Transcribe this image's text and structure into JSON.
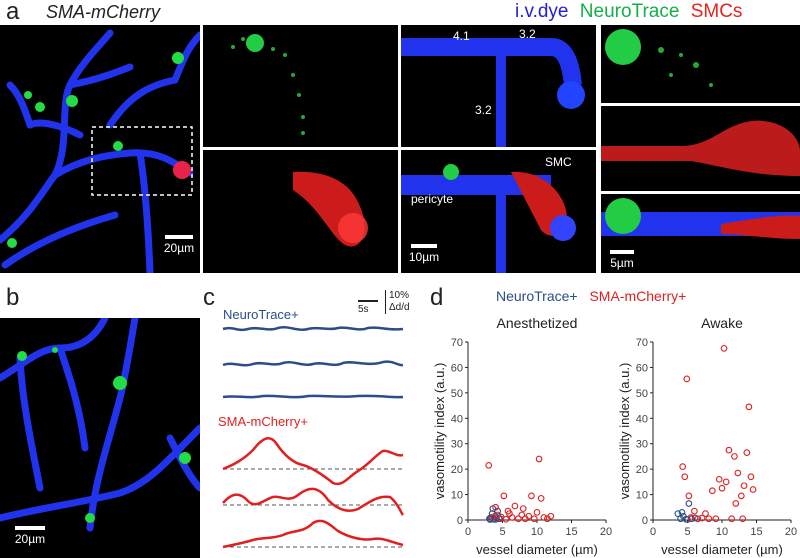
{
  "figure": {
    "panel_a": {
      "letter": "a",
      "mouse_line": "SMA-mCherry",
      "channels": [
        {
          "label": "i.v.dye",
          "color": "#1f1fd8"
        },
        {
          "label": "NeuroTrace",
          "color": "#12b04a"
        },
        {
          "label": "SMCs",
          "color": "#e8221b"
        }
      ],
      "scalebars": [
        "20µm",
        "10µm",
        "5µm"
      ],
      "vessel_labels": [
        "4.1",
        "3.2",
        "3.2"
      ],
      "cell_labels": [
        "SMC",
        "pericyte"
      ]
    },
    "panel_b": {
      "letter": "b",
      "scalebar": "20µm"
    },
    "panel_c": {
      "letter": "c",
      "group1": "NeuroTrace+",
      "group2": "SMA-mCherry+",
      "scale_time": "5s",
      "scale_amp": "10%",
      "scale_amp_unit": "Δd/d"
    },
    "panel_d": {
      "letter": "d",
      "legend": [
        {
          "label": "NeuroTrace+",
          "color": "#2a4f86"
        },
        {
          "label": "SMA-mCherry+",
          "color": "#e02020"
        }
      ]
    }
  },
  "chart_data": [
    {
      "type": "scatter",
      "title": "Anesthetized",
      "xlabel": "vessel diameter (µm)",
      "ylabel": "vasomotility index (a.u.)",
      "xlim": [
        0,
        20
      ],
      "ylim": [
        0,
        70
      ],
      "xticks": [
        0,
        5,
        10,
        15,
        20
      ],
      "yticks": [
        0,
        10,
        20,
        30,
        40,
        50,
        60,
        70
      ],
      "series": [
        {
          "name": "NeuroTrace+",
          "color": "#2a4f86",
          "points": [
            [
              3.1,
              0.5
            ],
            [
              3.3,
              1.0
            ],
            [
              3.5,
              2.5
            ],
            [
              3.7,
              0.3
            ],
            [
              3.9,
              1.5
            ],
            [
              4.1,
              0.8
            ],
            [
              4.3,
              3.5
            ],
            [
              4.5,
              0.5
            ],
            [
              3.6,
              4.5
            ],
            [
              4.0,
              0.2
            ],
            [
              4.8,
              1.2
            ],
            [
              3.2,
              0.2
            ]
          ]
        },
        {
          "name": "SMA-mCherry+",
          "color": "#e02020",
          "points": [
            [
              3.0,
              21.5
            ],
            [
              3.5,
              1.0
            ],
            [
              4.0,
              5.0
            ],
            [
              4.3,
              2.0
            ],
            [
              4.7,
              0.5
            ],
            [
              5.2,
              9.5
            ],
            [
              5.5,
              0.3
            ],
            [
              6.0,
              2.5
            ],
            [
              6.4,
              1.0
            ],
            [
              6.8,
              5.5
            ],
            [
              7.3,
              0.5
            ],
            [
              7.8,
              2.0
            ],
            [
              8.3,
              0.5
            ],
            [
              8.8,
              1.5
            ],
            [
              9.2,
              9.5
            ],
            [
              9.6,
              0.5
            ],
            [
              10.0,
              3.0
            ],
            [
              10.3,
              24.0
            ],
            [
              10.6,
              8.5
            ],
            [
              11.0,
              1.0
            ],
            [
              11.5,
              0.5
            ],
            [
              12.0,
              1.5
            ],
            [
              5.8,
              3.5
            ],
            [
              8.0,
              4.5
            ]
          ]
        }
      ]
    },
    {
      "type": "scatter",
      "title": "Awake",
      "xlabel": "vessel diameter (µm)",
      "ylabel": "vasomotility index (a.u.)",
      "xlim": [
        0,
        20
      ],
      "ylim": [
        0,
        70
      ],
      "xticks": [
        0,
        5,
        10,
        15,
        20
      ],
      "yticks": [
        0,
        10,
        20,
        30,
        40,
        50,
        60,
        70
      ],
      "series": [
        {
          "name": "NeuroTrace+",
          "color": "#2a4f86",
          "points": [
            [
              3.6,
              2.5
            ],
            [
              4.0,
              0.5
            ],
            [
              4.4,
              1.5
            ],
            [
              4.8,
              0.3
            ],
            [
              5.2,
              6.5
            ],
            [
              5.6,
              0.5
            ],
            [
              6.1,
              0.8
            ],
            [
              4.2,
              3.0
            ],
            [
              5.0,
              0.2
            ]
          ]
        },
        {
          "name": "SMA-mCherry+",
          "color": "#e02020",
          "points": [
            [
              4.3,
              21.0
            ],
            [
              4.6,
              17.0
            ],
            [
              4.9,
              55.5
            ],
            [
              5.2,
              9.5
            ],
            [
              5.5,
              1.0
            ],
            [
              6.0,
              3.5
            ],
            [
              6.5,
              0.5
            ],
            [
              7.1,
              0.8
            ],
            [
              7.6,
              2.5
            ],
            [
              8.1,
              0.5
            ],
            [
              8.6,
              11.5
            ],
            [
              9.1,
              0.5
            ],
            [
              9.6,
              16.0
            ],
            [
              10.0,
              12.5
            ],
            [
              10.3,
              67.5
            ],
            [
              10.6,
              15.0
            ],
            [
              11.0,
              27.5
            ],
            [
              11.4,
              0.5
            ],
            [
              11.8,
              25.0
            ],
            [
              12.3,
              18.5
            ],
            [
              12.8,
              9.5
            ],
            [
              13.2,
              13.5
            ],
            [
              13.6,
              26.5
            ],
            [
              13.9,
              44.5
            ],
            [
              14.2,
              17.0
            ],
            [
              14.5,
              12.0
            ],
            [
              13.0,
              0.5
            ],
            [
              12.0,
              6.5
            ]
          ]
        }
      ]
    }
  ]
}
